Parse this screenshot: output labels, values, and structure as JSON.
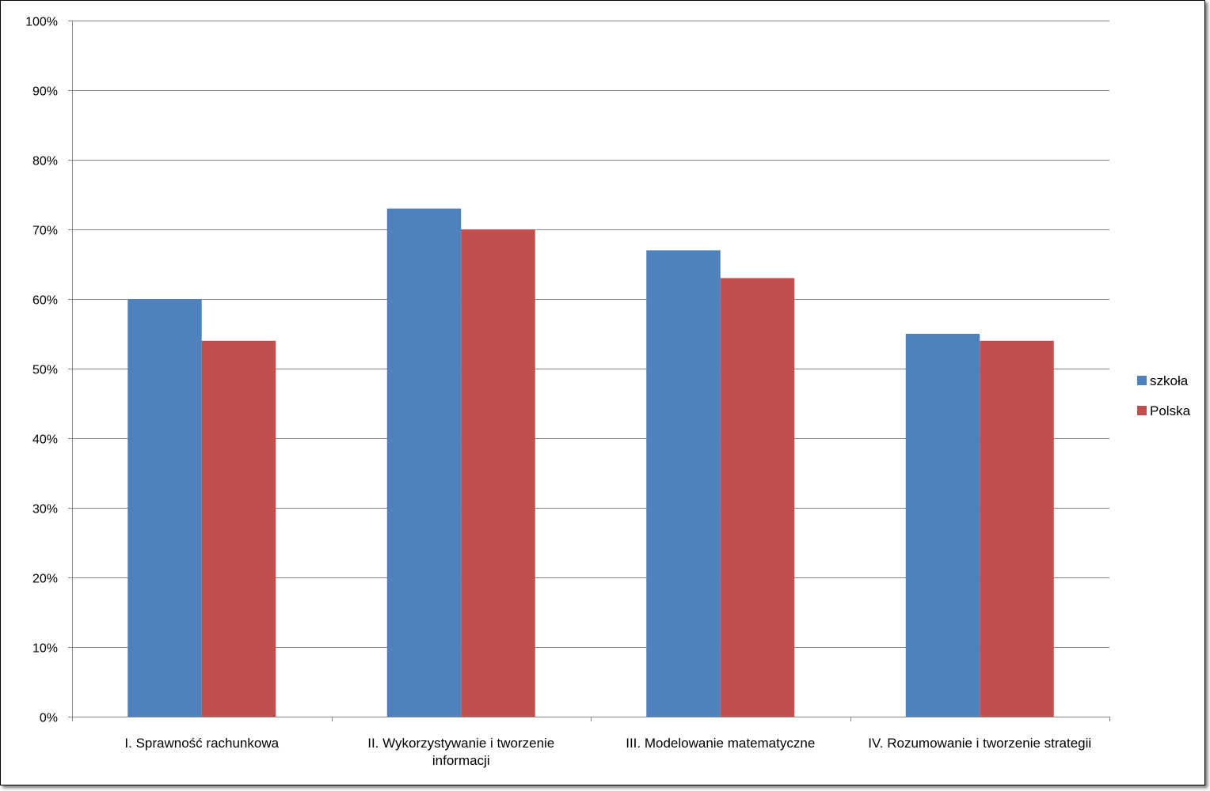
{
  "chart_data": {
    "type": "bar",
    "title": "",
    "xlabel": "",
    "ylabel": "",
    "categories": [
      [
        "I. Sprawność rachunkowa"
      ],
      [
        "II. Wykorzystywanie i tworzenie",
        "informacji"
      ],
      [
        "III. Modelowanie matematyczne"
      ],
      [
        "IV. Rozumowanie i tworzenie strategii"
      ]
    ],
    "series": [
      {
        "name": "szkoła",
        "color": "#4F81BD",
        "values": [
          60,
          73,
          67,
          55
        ]
      },
      {
        "name": "Polska",
        "color": "#C0504D",
        "values": [
          54,
          70,
          63,
          54
        ]
      }
    ],
    "ylim": [
      0,
      100
    ],
    "yticks": [
      0,
      10,
      20,
      30,
      40,
      50,
      60,
      70,
      80,
      90,
      100
    ],
    "ytick_suffix": "%",
    "grid": true,
    "legend_position": "right"
  }
}
